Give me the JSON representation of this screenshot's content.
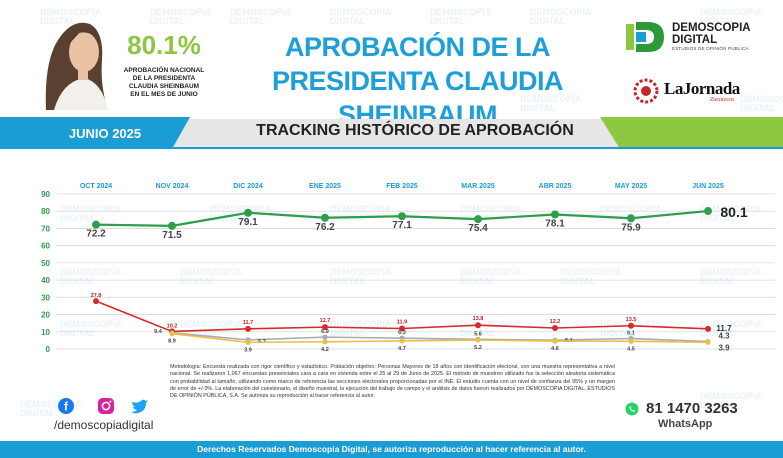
{
  "header": {
    "percentage": "80.1%",
    "caption_lines": [
      "APROBACIÓN NACIONAL",
      "DE LA PRESIDENTA",
      "CLAUDIA SHEINBAUM",
      "EN EL MES DE JUNIO"
    ],
    "title_lines": [
      "APROBACIÓN DE LA",
      "PRESIDENTA CLAUDIA SHEINBAUM"
    ],
    "brand_name_lines": [
      "DEMOSCOPIA",
      "DIGITAL"
    ],
    "brand_sub": "ESTUDIOS DE OPINIÓN PÚBLICA",
    "partner_name": "LaJornada",
    "partner_sub": "Zacatecas"
  },
  "watermark_text": [
    "DEMOSCOPIA",
    "DIGITAL"
  ],
  "band": {
    "month": "JUNIO 2025",
    "title": "TRACKING HISTÓRICO DE APROBACIÓN"
  },
  "colors": {
    "green": "#2e9e4a",
    "red": "#d62b2b",
    "gray": "#a9a9b8",
    "yellow": "#e8c245",
    "accent_blue": "#1a9cd4",
    "accent_green": "#8dc63f"
  },
  "chart_data": {
    "type": "line",
    "categories": [
      "OCT 2024",
      "NOV 2024",
      "DIC 2024",
      "ENE 2025",
      "FEB 2025",
      "MAR 2025",
      "ABR 2025",
      "MAY 2025",
      "JUN 2025"
    ],
    "ylim": [
      0,
      90
    ],
    "yticks": [
      0,
      10,
      20,
      30,
      40,
      50,
      60,
      70,
      80,
      90
    ],
    "grid": true,
    "series": [
      {
        "color": "#2e9e4a",
        "values": [
          72.2,
          71.5,
          79.1,
          76.2,
          77.1,
          75.4,
          78.1,
          75.9,
          80.1
        ],
        "labels": [
          "72.2",
          "71.5",
          "79.1",
          "76.2",
          "77.1",
          "75.4",
          "78.1",
          "75.9",
          "80.1"
        ]
      },
      {
        "color": "#d62b2b",
        "values": [
          27.8,
          10.2,
          11.7,
          12.7,
          11.9,
          13.8,
          12.2,
          13.5,
          11.7
        ],
        "labels": [
          "27.8",
          "10.2",
          "11.7",
          "12.7",
          "11.9",
          "13.8",
          "12.2",
          "13.5",
          "11.7"
        ]
      },
      {
        "color": "#a9a9b8",
        "values": [
          null,
          9.4,
          5.3,
          6.9,
          6.3,
          5.6,
          5.1,
          6.1,
          4.3
        ],
        "labels": [
          "",
          "9.4",
          "5.3",
          "6.9",
          "6.3",
          "5.6",
          "5.1",
          "6.1",
          "4.3"
        ]
      },
      {
        "color": "#e8c245",
        "values": [
          null,
          8.9,
          3.9,
          4.2,
          4.7,
          5.2,
          4.6,
          4.5,
          3.9
        ],
        "labels": [
          "",
          "8.9",
          "3.9",
          "4.2",
          "4.7",
          "5.2",
          "4.6",
          "4.5",
          "3.9"
        ]
      }
    ]
  },
  "methodology": "Metodología: Encuesta realizada con rigor científico y estadístico. Población objetivo: Personas Mayores de 18 años con identificación electoral, con una muestra representativa a nivel nacional. Se realizaron 1,067 encuestas presenciales cara a cara en vivienda entre el 25 al 29 de Junio de 2025. El método de muestreo utilizado fue la selección aleatoria sistemática con probabilidad al tamaño, utilizando como marco de referencia las secciones electorales proporcionadas por el INE. El estudio cuenta con un nivel de confianza del 95% y un margen de error de +/-3%. La elaboración del cuestionario, el diseño muestral, la ejecución del trabajo de campo y el análisis de datos fueron realizados por DEMOSCOPIA DIGITAL, ESTUDIOS DE OPINIÓN PÚBLICA, S.A. Se autoriza su reproducción al hacer referencia al autor.",
  "social": {
    "handle": "/demoscopiadigital",
    "icons": [
      "facebook-icon",
      "instagram-icon",
      "twitter-icon"
    ]
  },
  "contact": {
    "phone": "81 1470 3263",
    "label": "WhatsApp"
  },
  "footer": "Derechos Reservados Demoscopia Digital, se autoriza reproducción al hacer referencia al autor."
}
